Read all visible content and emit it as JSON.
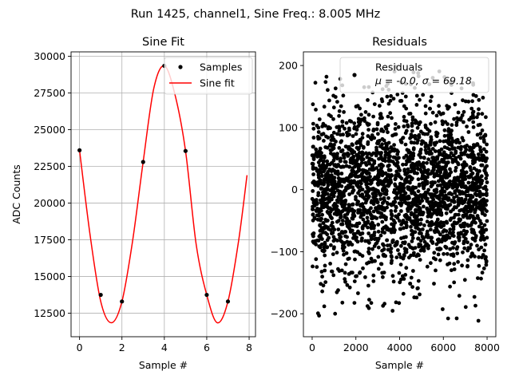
{
  "figure_title": "Run 1425, channel1, Sine Freq.: 8.005 MHz",
  "chart_data": [
    {
      "type": "line",
      "title": "Sine Fit",
      "xlabel": "Sample #",
      "ylabel": "ADC Counts",
      "xlim": [
        -0.4,
        8.3
      ],
      "ylim": [
        10900,
        30300
      ],
      "xticks": [
        0,
        2,
        4,
        6,
        8
      ],
      "yticks": [
        12500,
        15000,
        17500,
        20000,
        22500,
        25000,
        27500,
        30000
      ],
      "grid": true,
      "legend_position": "upper-right",
      "series": [
        {
          "name": "Samples",
          "kind": "scatter",
          "color": "#000000",
          "x": [
            0,
            1,
            2,
            3,
            4,
            5,
            6,
            7
          ],
          "y": [
            23600,
            13750,
            13300,
            22800,
            29350,
            23550,
            13750,
            13300
          ]
        },
        {
          "name": "Sine fit",
          "kind": "line",
          "color": "#ff0000",
          "x": [
            0,
            0.5,
            1,
            1.5,
            2,
            2.5,
            3,
            3.5,
            4,
            4.5,
            5,
            5.5,
            6,
            6.5,
            7,
            7.5,
            7.9
          ],
          "y": [
            23600,
            17800,
            13300,
            11850,
            13300,
            17400,
            22800,
            27800,
            29350,
            27400,
            23550,
            17200,
            13750,
            11850,
            13300,
            17400,
            21900
          ]
        }
      ]
    },
    {
      "type": "scatter",
      "title": "Residuals",
      "xlabel": "Sample #",
      "ylabel": "",
      "xlim": [
        -400,
        8400
      ],
      "ylim": [
        -237,
        222
      ],
      "xticks": [
        0,
        2000,
        4000,
        6000,
        8000
      ],
      "yticks": [
        -200,
        -100,
        0,
        100,
        200
      ],
      "grid": false,
      "legend_position": "upper-right",
      "legend": {
        "name": "Residuals",
        "stats": "μ = -0.0, σ = 69.18"
      },
      "series": [
        {
          "name": "Residuals",
          "color": "#000000",
          "n_points": 8000,
          "mean": 0.0,
          "std": 69.18,
          "x_range": [
            0,
            8000
          ],
          "y_range": [
            -216,
            200
          ]
        }
      ]
    }
  ]
}
